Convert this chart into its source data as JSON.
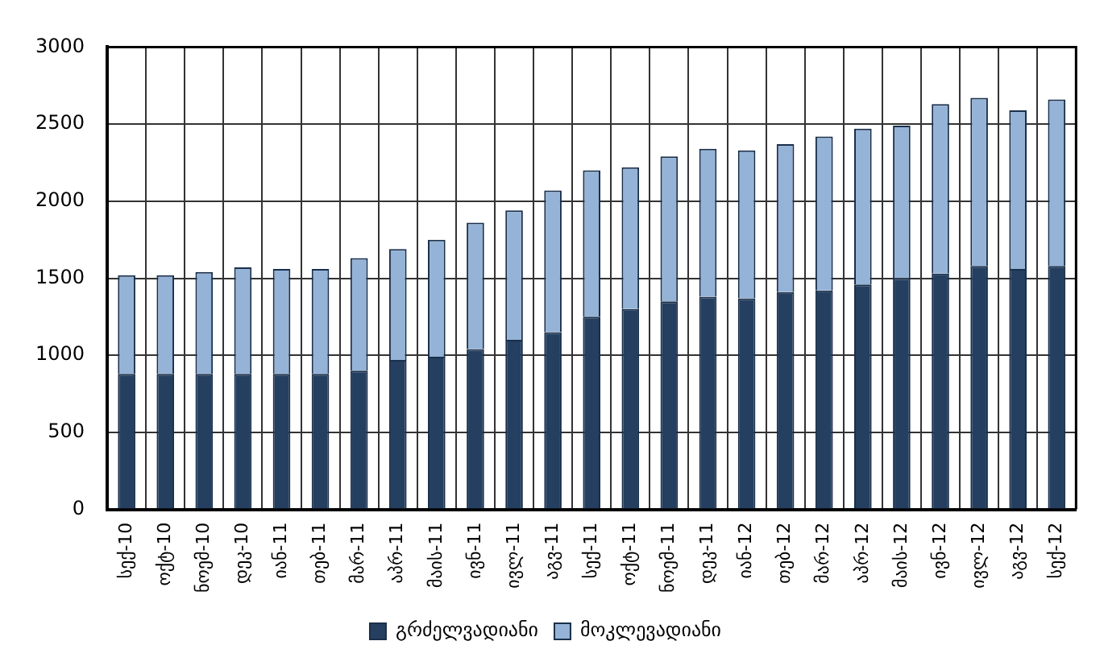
{
  "chart_data": {
    "type": "bar",
    "stacked": true,
    "categories": [
      "სექ-10",
      "ოქტ-10",
      "ნოემ-10",
      "დეკ-10",
      "იან-11",
      "თებ-11",
      "მარ-11",
      "აპრ-11",
      "მაის-11",
      "ივნ-11",
      "ივლ-11",
      "აგვ-11",
      "სექ-11",
      "ოქტ-11",
      "ნოემ-11",
      "დეკ-11",
      "იან-12",
      "თებ-12",
      "მარ-12",
      "აპრ-12",
      "მაის-12",
      "ივნ-12",
      "ივლ-12",
      "აგვ-12",
      "სექ-12"
    ],
    "series": [
      {
        "name": "გრძელვადიანი",
        "color": "#243f60",
        "values": [
          880,
          880,
          880,
          880,
          880,
          880,
          900,
          970,
          990,
          1040,
          1100,
          1150,
          1250,
          1300,
          1350,
          1380,
          1370,
          1410,
          1420,
          1460,
          1500,
          1530,
          1580,
          1560,
          1580
        ]
      },
      {
        "name": "მოკლევადიანი",
        "color": "#95b3d7",
        "values": [
          640,
          640,
          660,
          690,
          680,
          680,
          730,
          720,
          760,
          820,
          840,
          920,
          950,
          920,
          940,
          960,
          960,
          960,
          1000,
          1010,
          990,
          1100,
          1090,
          1030,
          1080
        ]
      }
    ],
    "ylim": [
      0,
      3000
    ],
    "yticks": [
      0,
      500,
      1000,
      1500,
      2000,
      2500,
      3000
    ],
    "grid": true,
    "legend": "bottom"
  }
}
